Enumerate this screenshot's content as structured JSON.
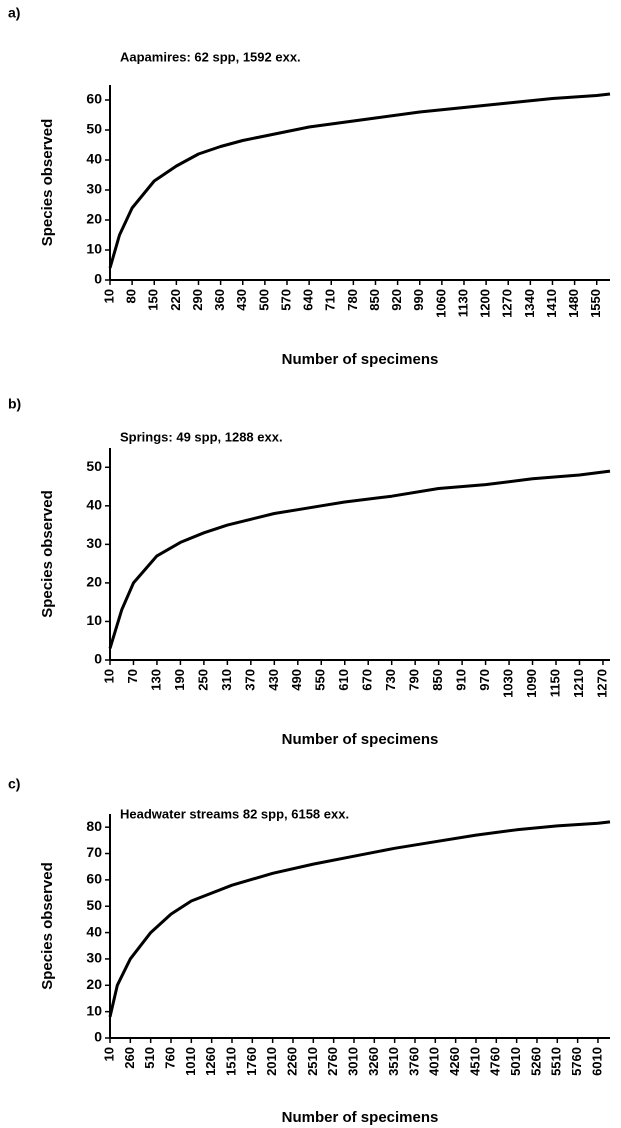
{
  "chart_data": [
    {
      "type": "line",
      "label": "a)",
      "title": "Aapamires: 62 spp, 1592 exx.",
      "xlabel": "Number of specimens",
      "ylabel": "Species observed",
      "color": "#000000",
      "x": [
        10,
        40,
        80,
        150,
        220,
        290,
        360,
        430,
        500,
        570,
        640,
        710,
        850,
        990,
        1130,
        1270,
        1410,
        1550,
        1592
      ],
      "values": [
        4,
        15,
        24,
        33,
        38,
        42,
        44.5,
        46.5,
        48,
        49.5,
        51,
        52,
        54,
        56,
        57.5,
        59,
        60.5,
        61.5,
        62
      ],
      "xlim": [
        10,
        1592
      ],
      "ylim": [
        0,
        65
      ],
      "xticks": [
        10,
        80,
        150,
        220,
        290,
        360,
        430,
        500,
        570,
        640,
        710,
        780,
        850,
        920,
        990,
        1060,
        1130,
        1200,
        1270,
        1340,
        1410,
        1480,
        1550
      ],
      "yticks": [
        0,
        10,
        20,
        30,
        40,
        50,
        60
      ]
    },
    {
      "type": "line",
      "label": "b)",
      "title": "Springs: 49 spp, 1288 exx.",
      "xlabel": "Number of specimens",
      "ylabel": "Species observed",
      "color": "#000000",
      "x": [
        10,
        40,
        70,
        130,
        190,
        250,
        310,
        370,
        430,
        490,
        550,
        610,
        730,
        850,
        970,
        1090,
        1210,
        1288
      ],
      "values": [
        3,
        13,
        20,
        27,
        30.5,
        33,
        35,
        36.5,
        38,
        39,
        40,
        41,
        42.5,
        44.5,
        45.5,
        47,
        48,
        49
      ],
      "xlim": [
        10,
        1288
      ],
      "ylim": [
        0,
        55
      ],
      "xticks": [
        10,
        70,
        130,
        190,
        250,
        310,
        370,
        430,
        490,
        550,
        610,
        670,
        730,
        790,
        850,
        910,
        970,
        1030,
        1090,
        1150,
        1210,
        1270
      ],
      "yticks": [
        0,
        10,
        20,
        30,
        40,
        50
      ]
    },
    {
      "type": "line",
      "label": "c)",
      "title": "Headwater streams 82 spp, 6158 exx.",
      "xlabel": "Number of specimens",
      "ylabel": "Species observed",
      "color": "#000000",
      "x": [
        10,
        100,
        260,
        510,
        760,
        1010,
        1510,
        2010,
        2510,
        3010,
        3510,
        4010,
        4510,
        5010,
        5510,
        6010,
        6158
      ],
      "values": [
        8,
        20,
        30,
        40,
        47,
        52,
        58,
        62.5,
        66,
        69,
        72,
        74.5,
        77,
        79,
        80.5,
        81.5,
        82
      ],
      "xlim": [
        10,
        6158
      ],
      "ylim": [
        0,
        85
      ],
      "xticks": [
        10,
        260,
        510,
        760,
        1010,
        1260,
        1510,
        1760,
        2010,
        2260,
        2510,
        2760,
        3010,
        3260,
        3510,
        3760,
        4010,
        4260,
        4510,
        4760,
        5010,
        5260,
        5510,
        5760,
        6010
      ],
      "yticks": [
        0,
        10,
        20,
        30,
        40,
        50,
        60,
        70,
        80
      ]
    }
  ]
}
